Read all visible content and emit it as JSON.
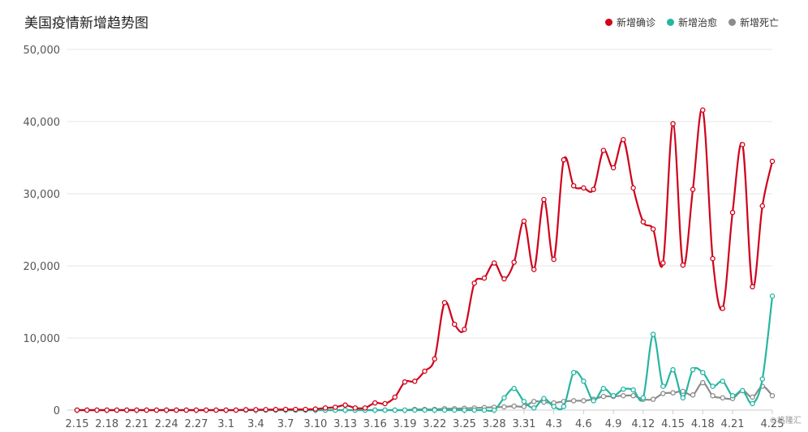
{
  "chart_data": {
    "type": "line",
    "title": "美国疫情新增趋势图",
    "xlabel": "",
    "ylabel": "",
    "ylim": [
      0,
      50000
    ],
    "yticks": [
      "0",
      "10,000",
      "20,000",
      "30,000",
      "40,000",
      "50,000"
    ],
    "grid": true,
    "legend_position": "top-right",
    "x_tick_labels": [
      "2.15",
      "2.18",
      "2.21",
      "2.24",
      "2.27",
      "3.1",
      "3.4",
      "3.7",
      "3.10",
      "3.13",
      "3.16",
      "3.19",
      "3.22",
      "3.25",
      "3.28",
      "3.31",
      "4.3",
      "4.6",
      "4.9",
      "4.12",
      "4.15",
      "4.18",
      "4.21",
      "4.25"
    ],
    "x": [
      "2.15",
      "2.16",
      "2.17",
      "2.18",
      "2.19",
      "2.20",
      "2.21",
      "2.22",
      "2.23",
      "2.24",
      "2.25",
      "2.26",
      "2.27",
      "2.28",
      "2.29",
      "3.1",
      "3.2",
      "3.3",
      "3.4",
      "3.5",
      "3.6",
      "3.7",
      "3.8",
      "3.9",
      "3.10",
      "3.11",
      "3.12",
      "3.13",
      "3.14",
      "3.15",
      "3.16",
      "3.17",
      "3.18",
      "3.19",
      "3.20",
      "3.21",
      "3.22",
      "3.23",
      "3.24",
      "3.25",
      "3.26",
      "3.27",
      "3.28",
      "3.29",
      "3.30",
      "3.31",
      "4.1",
      "4.2",
      "4.3",
      "4.4",
      "4.5",
      "4.6",
      "4.7",
      "4.8",
      "4.9",
      "4.10",
      "4.11",
      "4.12",
      "4.13",
      "4.14",
      "4.15",
      "4.16",
      "4.17",
      "4.18",
      "4.19",
      "4.20",
      "4.21",
      "4.22",
      "4.23",
      "4.24",
      "4.25"
    ],
    "series": [
      {
        "name": "新增确诊",
        "color": "#d0021b",
        "values": [
          0,
          0,
          0,
          0,
          0,
          0,
          0,
          0,
          0,
          0,
          0,
          0,
          0,
          0,
          0,
          0,
          0,
          50,
          60,
          70,
          80,
          100,
          100,
          100,
          150,
          300,
          400,
          700,
          300,
          300,
          1000,
          900,
          1800,
          3900,
          4000,
          5400,
          7100,
          14900,
          11900,
          11200,
          17600,
          18300,
          20400,
          18200,
          20500,
          26200,
          19500,
          29200,
          20900,
          34700,
          31100,
          30800,
          30600,
          36000,
          33600,
          37500,
          30800,
          26100,
          25100,
          20400,
          39700,
          20100,
          30600,
          41600,
          21000,
          14100,
          27400,
          36800,
          17100,
          28300,
          34500
        ]
      },
      {
        "name": "新增治愈",
        "color": "#26b5a2",
        "values": [
          0,
          0,
          0,
          0,
          0,
          0,
          0,
          0,
          0,
          0,
          0,
          0,
          0,
          0,
          0,
          0,
          0,
          0,
          0,
          0,
          0,
          0,
          0,
          0,
          0,
          0,
          0,
          0,
          0,
          0,
          0,
          0,
          0,
          0,
          0,
          0,
          0,
          0,
          0,
          0,
          0,
          0,
          0,
          1700,
          3000,
          1200,
          300,
          1600,
          500,
          500,
          5200,
          4000,
          1300,
          3000,
          2000,
          2900,
          2800,
          1700,
          10500,
          3300,
          5600,
          1700,
          5600,
          5200,
          3300,
          4000,
          2000,
          2700,
          900,
          4300,
          15800
        ]
      },
      {
        "name": "新增死亡",
        "color": "#8c8c8c",
        "values": [
          0,
          0,
          0,
          0,
          0,
          0,
          0,
          0,
          0,
          0,
          0,
          0,
          0,
          0,
          0,
          0,
          0,
          0,
          0,
          0,
          0,
          0,
          0,
          0,
          0,
          0,
          0,
          0,
          0,
          0,
          0,
          0,
          0,
          0,
          100,
          100,
          100,
          200,
          200,
          250,
          300,
          350,
          400,
          450,
          550,
          500,
          1200,
          1100,
          1000,
          1200,
          1300,
          1300,
          1500,
          1900,
          1900,
          2000,
          2000,
          1500,
          1500,
          2300,
          2400,
          2600,
          2100,
          3800,
          2000,
          1700,
          1600,
          2700,
          1800,
          3300,
          2000
        ]
      }
    ]
  },
  "watermark": "©格隆汇"
}
